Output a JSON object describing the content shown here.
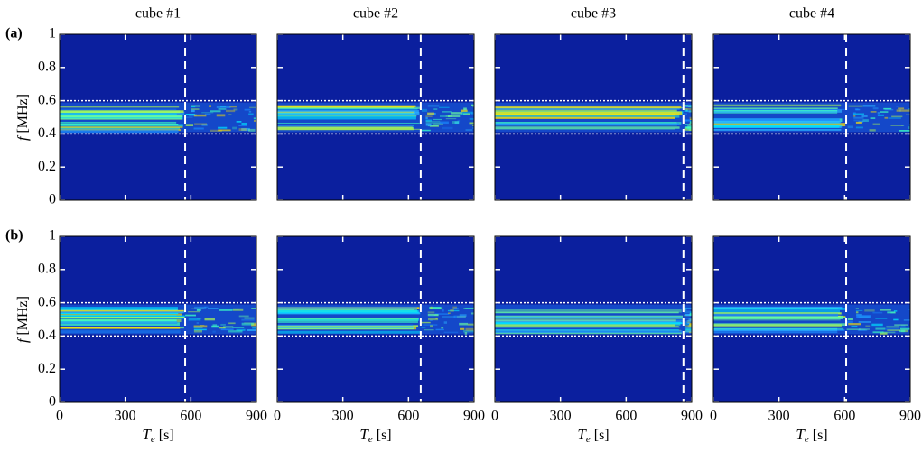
{
  "chart_data": [
    {
      "type": "heatmap",
      "title": "cube #1",
      "panel_label": "(a)",
      "ylabel": [
        "f",
        "[MHz]"
      ],
      "xlim": [
        0,
        900
      ],
      "ylim": [
        0,
        1
      ],
      "xticks": [
        0,
        300,
        600,
        900
      ],
      "yticks": [
        0,
        0.2,
        0.4,
        0.6,
        0.8,
        1
      ],
      "xtick_labels": false,
      "ytick_labels": true,
      "vline": 574,
      "hlines": [
        0.4,
        0.6
      ]
    },
    {
      "type": "heatmap",
      "title": "cube #2",
      "xlim": [
        0,
        900
      ],
      "ylim": [
        0,
        1
      ],
      "xticks": [
        0,
        300,
        600,
        900
      ],
      "yticks": [
        0,
        0.2,
        0.4,
        0.6,
        0.8,
        1
      ],
      "xtick_labels": false,
      "ytick_labels": false,
      "vline": 656,
      "hlines": [
        0.4,
        0.6
      ]
    },
    {
      "type": "heatmap",
      "title": "cube #3",
      "xlim": [
        0,
        900
      ],
      "ylim": [
        0,
        1
      ],
      "xticks": [
        0,
        300,
        600,
        900
      ],
      "yticks": [
        0,
        0.2,
        0.4,
        0.6,
        0.8,
        1
      ],
      "xtick_labels": false,
      "ytick_labels": false,
      "vline": 862,
      "hlines": [
        0.4,
        0.6
      ]
    },
    {
      "type": "heatmap",
      "title": "cube #4",
      "xlim": [
        0,
        900
      ],
      "ylim": [
        0,
        1
      ],
      "xticks": [
        0,
        300,
        600,
        900
      ],
      "yticks": [
        0,
        0.2,
        0.4,
        0.6,
        0.8,
        1
      ],
      "xtick_labels": false,
      "ytick_labels": false,
      "vline": 607,
      "hlines": [
        0.4,
        0.6
      ]
    },
    {
      "type": "heatmap",
      "panel_label": "(b)",
      "ylabel": [
        "f",
        "[MHz]"
      ],
      "xlabel": [
        "T",
        "e",
        "[s]"
      ],
      "xlim": [
        0,
        900
      ],
      "ylim": [
        0,
        1
      ],
      "xticks": [
        0,
        300,
        600,
        900
      ],
      "yticks": [
        0,
        0.2,
        0.4,
        0.6,
        0.8,
        1
      ],
      "xtick_labels": true,
      "ytick_labels": true,
      "vline": 574,
      "hlines": [
        0.4,
        0.6
      ]
    },
    {
      "type": "heatmap",
      "xlabel": [
        "T",
        "e",
        "[s]"
      ],
      "xlim": [
        0,
        900
      ],
      "ylim": [
        0,
        1
      ],
      "xticks": [
        0,
        300,
        600,
        900
      ],
      "yticks": [
        0,
        0.2,
        0.4,
        0.6,
        0.8,
        1
      ],
      "xtick_labels": true,
      "ytick_labels": false,
      "vline": 656,
      "hlines": [
        0.4,
        0.6
      ]
    },
    {
      "type": "heatmap",
      "xlabel": [
        "T",
        "e",
        "[s]"
      ],
      "xlim": [
        0,
        900
      ],
      "ylim": [
        0,
        1
      ],
      "xticks": [
        0,
        300,
        600,
        900
      ],
      "yticks": [
        0,
        0.2,
        0.4,
        0.6,
        0.8,
        1
      ],
      "xtick_labels": true,
      "ytick_labels": false,
      "vline": 862,
      "hlines": [
        0.4,
        0.6
      ]
    },
    {
      "type": "heatmap",
      "xlabel": [
        "T",
        "e",
        "[s]"
      ],
      "xlim": [
        0,
        900
      ],
      "ylim": [
        0,
        1
      ],
      "xticks": [
        0,
        300,
        600,
        900
      ],
      "yticks": [
        0,
        0.2,
        0.4,
        0.6,
        0.8,
        1
      ],
      "xtick_labels": true,
      "ytick_labels": false,
      "vline": 607,
      "hlines": [
        0.4,
        0.6
      ]
    }
  ]
}
